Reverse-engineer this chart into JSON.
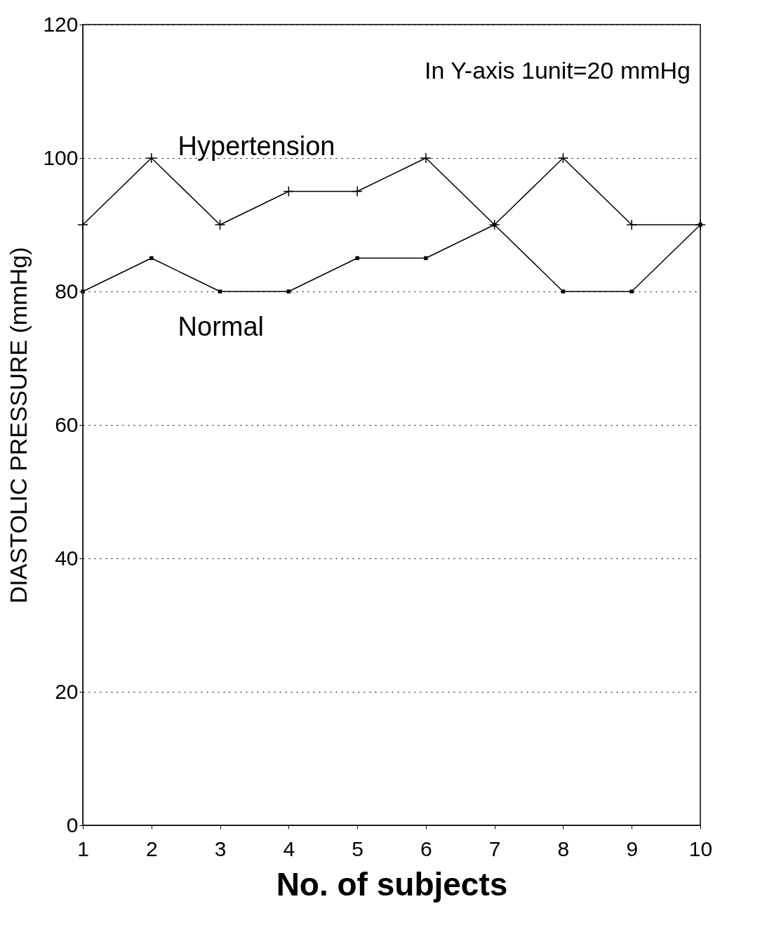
{
  "chart_data": {
    "type": "line",
    "xlabel": "No. of subjects",
    "ylabel": "DIASTOLIC  PRESSURE  (mmHg)",
    "x": [
      1,
      2,
      3,
      4,
      5,
      6,
      7,
      8,
      9,
      10
    ],
    "xlim": [
      1,
      10
    ],
    "xticks": [
      1,
      2,
      3,
      4,
      5,
      6,
      7,
      8,
      9,
      10
    ],
    "ylim": [
      0,
      120
    ],
    "yticks": [
      0,
      20,
      40,
      60,
      80,
      100,
      120
    ],
    "grid": "y",
    "annotations": [
      "In Y-axis 1unit=20 mmHg"
    ],
    "series": [
      {
        "name": "Hypertension",
        "color": "#000000",
        "marker": "cross",
        "values": [
          90,
          100,
          90,
          95,
          95,
          100,
          90,
          100,
          90,
          90
        ]
      },
      {
        "name": "Normal",
        "color": "#000000",
        "marker": "square",
        "values": [
          80,
          85,
          80,
          80,
          85,
          85,
          90,
          80,
          80,
          90
        ]
      }
    ]
  }
}
